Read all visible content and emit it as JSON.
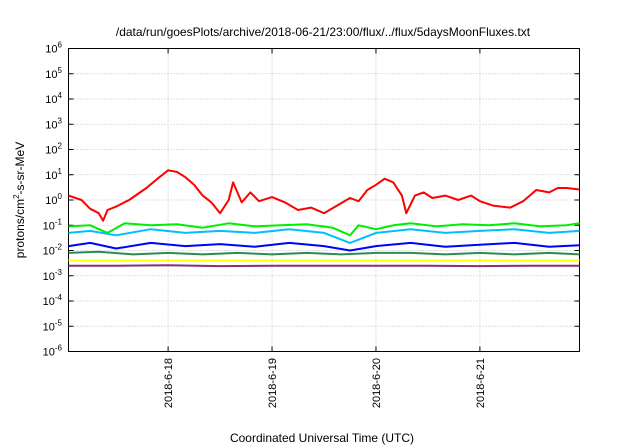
{
  "chart_data": {
    "type": "line",
    "title": "/data/run/goesPlots/archive/2018-06-21/23:00/flux/../flux/5daysMoonFluxes.txt",
    "xlabel": "Coordinated Universal Time (UTC)",
    "ylabel": {
      "pre": "protons/cm",
      "sup": "2",
      "post": "-s-sr-MeV"
    },
    "y_scale": "log",
    "ylim": [
      1e-06,
      1000000.0
    ],
    "y_ticks": [
      {
        "value": 1e-06,
        "base": "10",
        "exp": "-6"
      },
      {
        "value": 1e-05,
        "base": "10",
        "exp": "-5"
      },
      {
        "value": 0.0001,
        "base": "10",
        "exp": "-4"
      },
      {
        "value": 0.001,
        "base": "10",
        "exp": "-3"
      },
      {
        "value": 0.01,
        "base": "10",
        "exp": "-2"
      },
      {
        "value": 0.1,
        "base": "10",
        "exp": "-1"
      },
      {
        "value": 1.0,
        "base": "10",
        "exp": "0"
      },
      {
        "value": 10.0,
        "base": "10",
        "exp": "1"
      },
      {
        "value": 100.0,
        "base": "10",
        "exp": "2"
      },
      {
        "value": 1000.0,
        "base": "10",
        "exp": "3"
      },
      {
        "value": 10000.0,
        "base": "10",
        "exp": "4"
      },
      {
        "value": 100000.0,
        "base": "10",
        "exp": "5"
      },
      {
        "value": 1000000.0,
        "base": "10",
        "exp": "6"
      }
    ],
    "xlim": [
      "2018-06-17T01:00",
      "2018-06-21T23:00"
    ],
    "x_ticks": [
      "2018-6-18",
      "2018-6-19",
      "2018-6-20",
      "2018-6-21"
    ],
    "x_tick_dates": [
      "2018-06-18T00:00",
      "2018-06-19T00:00",
      "2018-06-20T00:00",
      "2018-06-21T00:00"
    ],
    "grid": true,
    "series": [
      {
        "color": "#ff0000",
        "points": [
          [
            "2018-06-17T01:00",
            1.5
          ],
          [
            "2018-06-17T04:00",
            1.0
          ],
          [
            "2018-06-17T06:00",
            0.45
          ],
          [
            "2018-06-17T08:00",
            0.3
          ],
          [
            "2018-06-17T09:00",
            0.15
          ],
          [
            "2018-06-17T10:00",
            0.4
          ],
          [
            "2018-06-17T12:00",
            0.55
          ],
          [
            "2018-06-17T15:00",
            1.0
          ],
          [
            "2018-06-17T19:00",
            3
          ],
          [
            "2018-06-17T22:00",
            8
          ],
          [
            "2018-06-18T00:00",
            15
          ],
          [
            "2018-06-18T02:00",
            13
          ],
          [
            "2018-06-18T04:00",
            8
          ],
          [
            "2018-06-18T06:00",
            4
          ],
          [
            "2018-06-18T08:00",
            1.5
          ],
          [
            "2018-06-18T10:00",
            0.8
          ],
          [
            "2018-06-18T12:00",
            0.3
          ],
          [
            "2018-06-18T14:00",
            1.0
          ],
          [
            "2018-06-18T15:00",
            5
          ],
          [
            "2018-06-18T17:00",
            0.8
          ],
          [
            "2018-06-18T19:00",
            2
          ],
          [
            "2018-06-18T21:00",
            0.9
          ],
          [
            "2018-06-19T00:00",
            1.3
          ],
          [
            "2018-06-19T03:00",
            0.8
          ],
          [
            "2018-06-19T06:00",
            0.4
          ],
          [
            "2018-06-19T09:00",
            0.5
          ],
          [
            "2018-06-19T12:00",
            0.3
          ],
          [
            "2018-06-19T15:00",
            0.6
          ],
          [
            "2018-06-19T18:00",
            1.2
          ],
          [
            "2018-06-19T20:00",
            0.9
          ],
          [
            "2018-06-19T22:00",
            2.5
          ],
          [
            "2018-06-20T00:00",
            4
          ],
          [
            "2018-06-20T02:00",
            7
          ],
          [
            "2018-06-20T04:00",
            5
          ],
          [
            "2018-06-20T06:00",
            1.5
          ],
          [
            "2018-06-20T07:00",
            0.3
          ],
          [
            "2018-06-20T09:00",
            1.5
          ],
          [
            "2018-06-20T11:00",
            2
          ],
          [
            "2018-06-20T13:00",
            1.2
          ],
          [
            "2018-06-20T16:00",
            1.5
          ],
          [
            "2018-06-20T19:00",
            1.0
          ],
          [
            "2018-06-20T22:00",
            1.5
          ],
          [
            "2018-06-21T00:00",
            0.9
          ],
          [
            "2018-06-21T03:00",
            0.6
          ],
          [
            "2018-06-21T07:00",
            0.5
          ],
          [
            "2018-06-21T10:00",
            0.9
          ],
          [
            "2018-06-21T13:00",
            2.5
          ],
          [
            "2018-06-21T16:00",
            2.0
          ],
          [
            "2018-06-21T18:00",
            3
          ],
          [
            "2018-06-21T20:00",
            3
          ],
          [
            "2018-06-21T23:00",
            2.6
          ]
        ]
      },
      {
        "color": "#00ee00",
        "points": [
          [
            "2018-06-17T01:00",
            0.09
          ],
          [
            "2018-06-17T06:00",
            0.1
          ],
          [
            "2018-06-17T10:00",
            0.05
          ],
          [
            "2018-06-17T14:00",
            0.12
          ],
          [
            "2018-06-17T20:00",
            0.1
          ],
          [
            "2018-06-18T02:00",
            0.11
          ],
          [
            "2018-06-18T08:00",
            0.08
          ],
          [
            "2018-06-18T14:00",
            0.12
          ],
          [
            "2018-06-18T20:00",
            0.09
          ],
          [
            "2018-06-19T02:00",
            0.1
          ],
          [
            "2018-06-19T08:00",
            0.11
          ],
          [
            "2018-06-19T14:00",
            0.08
          ],
          [
            "2018-06-19T18:00",
            0.04
          ],
          [
            "2018-06-19T20:00",
            0.1
          ],
          [
            "2018-06-20T00:00",
            0.07
          ],
          [
            "2018-06-20T04:00",
            0.1
          ],
          [
            "2018-06-20T08:00",
            0.12
          ],
          [
            "2018-06-20T14:00",
            0.09
          ],
          [
            "2018-06-20T20:00",
            0.11
          ],
          [
            "2018-06-21T02:00",
            0.1
          ],
          [
            "2018-06-21T08:00",
            0.12
          ],
          [
            "2018-06-21T14:00",
            0.09
          ],
          [
            "2018-06-21T20:00",
            0.1
          ],
          [
            "2018-06-21T23:00",
            0.12
          ]
        ]
      },
      {
        "color": "#00bfff",
        "points": [
          [
            "2018-06-17T01:00",
            0.05
          ],
          [
            "2018-06-17T06:00",
            0.06
          ],
          [
            "2018-06-17T12:00",
            0.04
          ],
          [
            "2018-06-17T20:00",
            0.07
          ],
          [
            "2018-06-18T04:00",
            0.05
          ],
          [
            "2018-06-18T12:00",
            0.06
          ],
          [
            "2018-06-18T20:00",
            0.05
          ],
          [
            "2018-06-19T04:00",
            0.07
          ],
          [
            "2018-06-19T12:00",
            0.05
          ],
          [
            "2018-06-19T18:00",
            0.02
          ],
          [
            "2018-06-20T00:00",
            0.05
          ],
          [
            "2018-06-20T08:00",
            0.07
          ],
          [
            "2018-06-20T16:00",
            0.05
          ],
          [
            "2018-06-21T00:00",
            0.06
          ],
          [
            "2018-06-21T08:00",
            0.07
          ],
          [
            "2018-06-21T16:00",
            0.05
          ],
          [
            "2018-06-21T23:00",
            0.06
          ]
        ]
      },
      {
        "color": "#0000ff",
        "points": [
          [
            "2018-06-17T01:00",
            0.015
          ],
          [
            "2018-06-17T06:00",
            0.02
          ],
          [
            "2018-06-17T12:00",
            0.012
          ],
          [
            "2018-06-17T20:00",
            0.02
          ],
          [
            "2018-06-18T04:00",
            0.015
          ],
          [
            "2018-06-18T12:00",
            0.018
          ],
          [
            "2018-06-18T20:00",
            0.014
          ],
          [
            "2018-06-19T04:00",
            0.02
          ],
          [
            "2018-06-19T12:00",
            0.015
          ],
          [
            "2018-06-19T18:00",
            0.01
          ],
          [
            "2018-06-20T00:00",
            0.015
          ],
          [
            "2018-06-20T08:00",
            0.02
          ],
          [
            "2018-06-20T16:00",
            0.014
          ],
          [
            "2018-06-21T00:00",
            0.017
          ],
          [
            "2018-06-21T08:00",
            0.02
          ],
          [
            "2018-06-21T16:00",
            0.014
          ],
          [
            "2018-06-21T23:00",
            0.016
          ]
        ]
      },
      {
        "color": "#2e8b57",
        "points": [
          [
            "2018-06-17T01:00",
            0.008
          ],
          [
            "2018-06-17T08:00",
            0.009
          ],
          [
            "2018-06-17T16:00",
            0.007
          ],
          [
            "2018-06-18T00:00",
            0.008
          ],
          [
            "2018-06-18T08:00",
            0.007
          ],
          [
            "2018-06-18T16:00",
            0.008
          ],
          [
            "2018-06-19T00:00",
            0.007
          ],
          [
            "2018-06-19T08:00",
            0.008
          ],
          [
            "2018-06-19T16:00",
            0.007
          ],
          [
            "2018-06-20T00:00",
            0.008
          ],
          [
            "2018-06-20T08:00",
            0.008
          ],
          [
            "2018-06-20T16:00",
            0.007
          ],
          [
            "2018-06-21T00:00",
            0.008
          ],
          [
            "2018-06-21T08:00",
            0.007
          ],
          [
            "2018-06-21T16:00",
            0.008
          ],
          [
            "2018-06-21T23:00",
            0.007
          ]
        ]
      },
      {
        "color": "#ffff00",
        "points": [
          [
            "2018-06-17T01:00",
            0.004
          ],
          [
            "2018-06-17T12:00",
            0.004
          ],
          [
            "2018-06-18T00:00",
            0.004
          ],
          [
            "2018-06-18T12:00",
            0.004
          ],
          [
            "2018-06-19T00:00",
            0.004
          ],
          [
            "2018-06-19T12:00",
            0.004
          ],
          [
            "2018-06-20T00:00",
            0.004
          ],
          [
            "2018-06-20T12:00",
            0.004
          ],
          [
            "2018-06-21T00:00",
            0.004
          ],
          [
            "2018-06-21T12:00",
            0.004
          ],
          [
            "2018-06-21T23:00",
            0.004
          ]
        ]
      },
      {
        "color": "#8b2e7a",
        "points": [
          [
            "2018-06-17T01:00",
            0.0025
          ],
          [
            "2018-06-17T12:00",
            0.0025
          ],
          [
            "2018-06-18T00:00",
            0.0026
          ],
          [
            "2018-06-18T12:00",
            0.0024
          ],
          [
            "2018-06-19T00:00",
            0.0025
          ],
          [
            "2018-06-19T12:00",
            0.0025
          ],
          [
            "2018-06-20T00:00",
            0.0025
          ],
          [
            "2018-06-20T12:00",
            0.0025
          ],
          [
            "2018-06-21T00:00",
            0.0024
          ],
          [
            "2018-06-21T12:00",
            0.0025
          ],
          [
            "2018-06-21T23:00",
            0.0025
          ]
        ]
      }
    ]
  }
}
